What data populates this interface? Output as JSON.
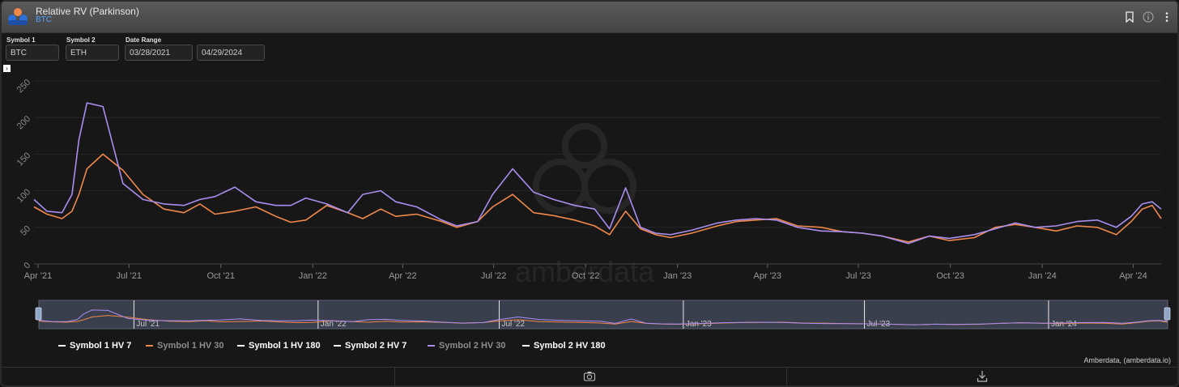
{
  "window": {
    "title": "Relative RV (Parkinson)",
    "subtitle": "BTC"
  },
  "controls": {
    "symbol1": {
      "label": "Symbol 1",
      "value": "BTC"
    },
    "symbol2": {
      "label": "Symbol 2",
      "value": "ETH"
    },
    "date_range": {
      "label": "Date Range",
      "start": "03/28/2021",
      "end": "04/29/2024"
    }
  },
  "watermark": "amberdata",
  "credit": "Amberdata, (amberdata.io)",
  "colors": {
    "orange": "#f0884a",
    "purple": "#a98ef0",
    "white": "#ffffff",
    "grid": "#2a2a2a"
  },
  "legend": [
    {
      "label": "Symbol 1 HV 7",
      "color": "#ffffff",
      "active": true
    },
    {
      "label": "Symbol 1 HV 30",
      "color": "#f0884a",
      "active": false
    },
    {
      "label": "Symbol 1 HV 180",
      "color": "#ffffff",
      "active": true
    },
    {
      "label": "Symbol 2 HV 7",
      "color": "#ffffff",
      "active": true
    },
    {
      "label": "Symbol 2 HV 30",
      "color": "#a98ef0",
      "active": false
    },
    {
      "label": "Symbol 2 HV 180",
      "color": "#ffffff",
      "active": true
    }
  ],
  "chart_data": {
    "type": "line",
    "ylim": [
      0,
      250
    ],
    "y_ticks": [
      "0",
      "50",
      "100",
      "150",
      "200",
      "250"
    ],
    "x_ticks": [
      "Apr '21",
      "Jul '21",
      "Oct '21",
      "Jan '22",
      "Apr '22",
      "Jul '22",
      "Oct '22",
      "Jan '23",
      "Apr '23",
      "Jul '23",
      "Oct '23",
      "Jan '24",
      "Apr '24"
    ],
    "navigator_ticks": [
      "Jul '21",
      "Jan '22",
      "Jul '22",
      "Jan '23",
      "Jul '23",
      "Jan '24"
    ],
    "x": [
      "2021-03-28",
      "2021-04-10",
      "2021-04-25",
      "2021-05-05",
      "2021-05-12",
      "2021-05-20",
      "2021-06-05",
      "2021-06-25",
      "2021-07-15",
      "2021-08-05",
      "2021-08-25",
      "2021-09-10",
      "2021-09-25",
      "2021-10-15",
      "2021-11-05",
      "2021-11-25",
      "2021-12-10",
      "2021-12-25",
      "2022-01-15",
      "2022-02-05",
      "2022-02-20",
      "2022-03-10",
      "2022-03-25",
      "2022-04-15",
      "2022-05-10",
      "2022-05-25",
      "2022-06-15",
      "2022-06-30",
      "2022-07-20",
      "2022-08-10",
      "2022-08-30",
      "2022-09-20",
      "2022-10-10",
      "2022-10-25",
      "2022-11-10",
      "2022-11-25",
      "2022-12-10",
      "2022-12-25",
      "2023-01-15",
      "2023-02-10",
      "2023-03-01",
      "2023-03-20",
      "2023-04-10",
      "2023-05-01",
      "2023-05-25",
      "2023-06-15",
      "2023-07-05",
      "2023-07-25",
      "2023-08-20",
      "2023-09-10",
      "2023-09-30",
      "2023-10-25",
      "2023-11-15",
      "2023-12-05",
      "2023-12-25",
      "2024-01-15",
      "2024-02-05",
      "2024-02-25",
      "2024-03-15",
      "2024-03-30",
      "2024-04-10",
      "2024-04-20",
      "2024-04-29"
    ],
    "series": [
      {
        "name": "Symbol 1 HV 30",
        "color": "#f0884a",
        "values": [
          78,
          68,
          62,
          72,
          95,
          130,
          150,
          128,
          95,
          75,
          70,
          82,
          68,
          72,
          78,
          65,
          57,
          60,
          80,
          70,
          62,
          75,
          65,
          68,
          58,
          50,
          58,
          78,
          95,
          70,
          66,
          60,
          52,
          40,
          72,
          48,
          40,
          36,
          42,
          52,
          58,
          60,
          62,
          52,
          50,
          44,
          42,
          38,
          30,
          38,
          32,
          36,
          50,
          54,
          50,
          45,
          52,
          50,
          40,
          58,
          75,
          80,
          62
        ]
      },
      {
        "name": "Symbol 2 HV 30",
        "color": "#a98ef0",
        "values": [
          88,
          72,
          70,
          95,
          170,
          220,
          215,
          110,
          88,
          82,
          80,
          88,
          92,
          105,
          85,
          80,
          80,
          90,
          82,
          70,
          95,
          100,
          85,
          78,
          60,
          52,
          58,
          95,
          130,
          98,
          88,
          80,
          75,
          48,
          104,
          50,
          42,
          40,
          46,
          56,
          60,
          62,
          60,
          50,
          45,
          44,
          42,
          38,
          28,
          38,
          35,
          40,
          48,
          56,
          50,
          52,
          58,
          60,
          50,
          65,
          82,
          85,
          75
        ]
      }
    ]
  }
}
